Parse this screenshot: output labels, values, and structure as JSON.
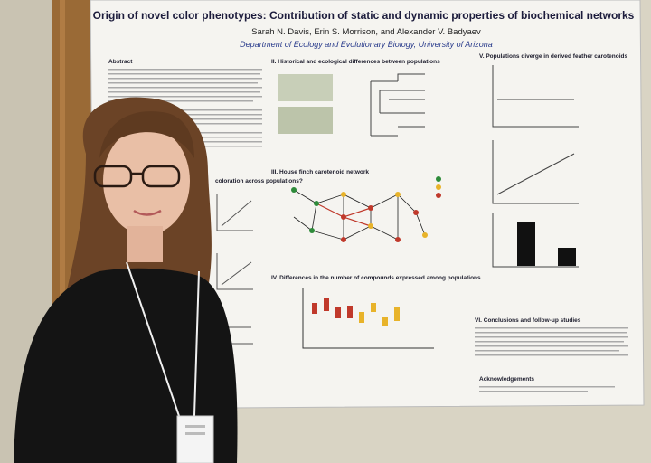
{
  "poster": {
    "title": "Origin of novel color phenotypes: Contribution of static and dynamic properties of biochemical networks",
    "authors": "Sarah N. Davis, Erin S. Morrison, and Alexander V. Badyaev",
    "affiliation": "Department of Ecology and Evolutionary Biology, University of Arizona",
    "sections": [
      "Abstract",
      "II. Historical and ecological differences between populations",
      "III. House finch carotenoid network",
      "IV. Differences in the number of compounds expressed among populations",
      "V. Populations diverge in derived feather carotenoids",
      "VI. Conclusions and follow-up studies",
      "Acknowledgements",
      "coloration across populations?"
    ]
  }
}
